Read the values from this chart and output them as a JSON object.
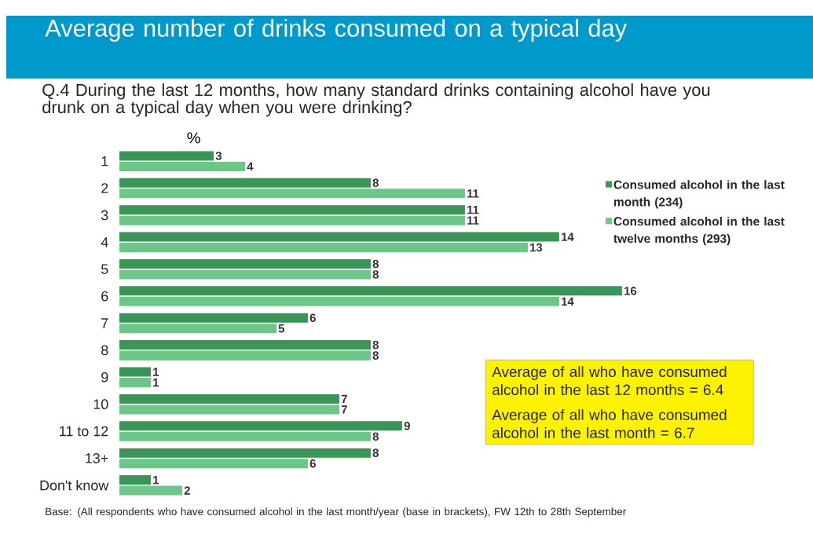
{
  "chart_data": {
    "type": "bar",
    "orientation": "horizontal",
    "title": "Average number of drinks consumed on a typical day",
    "subtitle": "Q.4 During the last 12 months, how many standard drinks containing alcohol have you drunk on a typical day when you were drinking?",
    "xlabel": "%",
    "categories": [
      "1",
      "2",
      "3",
      "4",
      "5",
      "6",
      "7",
      "8",
      "9",
      "10",
      "11 to 12",
      "13+",
      "Don't know"
    ],
    "series": [
      {
        "name": "Consumed alcohol in the last month (234)",
        "color": "#3a9657",
        "values": [
          3,
          8,
          11,
          14,
          8,
          16,
          6,
          8,
          1,
          7,
          9,
          8,
          1
        ]
      },
      {
        "name": "Consumed alcohol in the last twelve months (293)",
        "color": "#6cc687",
        "values": [
          4,
          11,
          11,
          13,
          8,
          14,
          5,
          8,
          1,
          7,
          8,
          6,
          2
        ]
      }
    ],
    "tick_labels": "y",
    "data_labels": true,
    "legend": "right",
    "annotations": [
      "Average of all who have consumed alcohol in the last 12 months = 6.4",
      "Average of all who have consumed alcohol in the last month = 6.7",
      "Base: (All respondents who have consumed alcohol in the last month/year (base in brackets), FW 12th to 28th September"
    ]
  }
}
